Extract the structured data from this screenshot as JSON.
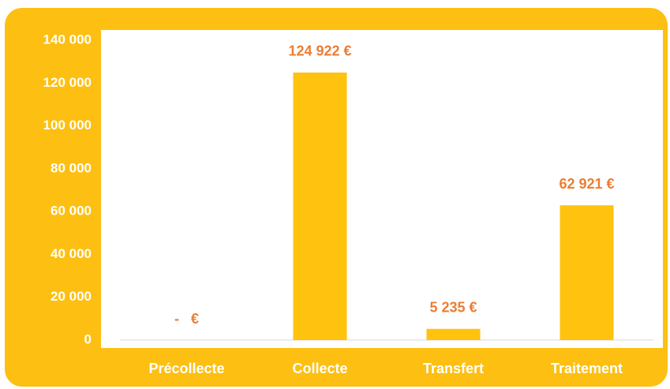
{
  "chart_data": {
    "type": "bar",
    "categories": [
      "Précollecte",
      "Collecte",
      "Transfert",
      "Traitement"
    ],
    "values": [
      0,
      124922,
      5235,
      62921
    ],
    "value_labels": [
      "-   €",
      "124 922 €",
      "5 235 €",
      "62 921 €"
    ],
    "color": "#FFC20E",
    "ylim": [
      0,
      140000
    ],
    "yticks": [
      0,
      {
        "value": 20000,
        "label": "20 000"
      },
      {
        "value": 40000,
        "label": "40 000"
      },
      {
        "value": 60000,
        "label": "60 000"
      },
      {
        "value": 80000,
        "label": "80 000"
      },
      {
        "value": 100000,
        "label": "100 000"
      },
      {
        "value": 120000,
        "label": "120 000"
      },
      {
        "value": 140000,
        "label": "140 000"
      }
    ],
    "grid": false
  }
}
